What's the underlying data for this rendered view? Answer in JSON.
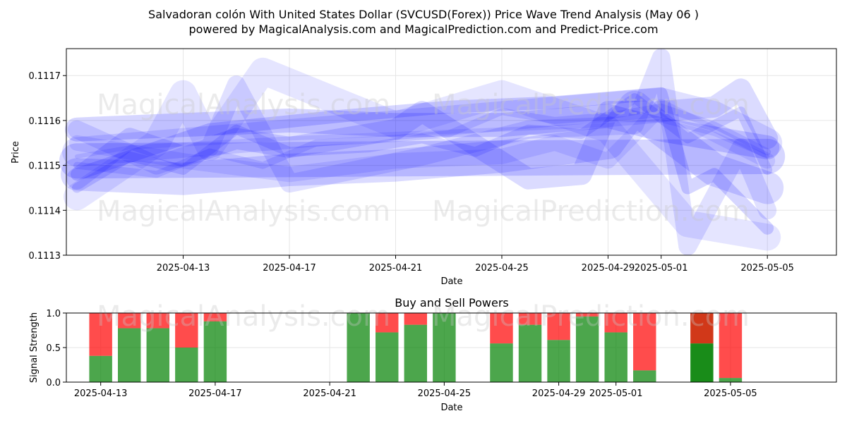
{
  "title_line1": "Salvadoran colón With United States Dollar (SVCUSD(Forex)) Price Wave Trend Analysis (May 06 )",
  "title_line2": "powered by MagicalAnalysis.com and MagicalPrediction.com and Predict-Price.com",
  "watermarks": [
    "MagicalAnalysis.com",
    "MagicalPrediction.com"
  ],
  "colors": {
    "wave": "#0000ff",
    "buy": "#008000",
    "sell": "#ff0000",
    "grid": "#e6e6e6"
  },
  "chart_data": [
    {
      "type": "line",
      "title": "",
      "xlabel": "Date",
      "ylabel": "Price",
      "x_range_days": [
        -2.4,
        26.6
      ],
      "x_ticks": [
        {
          "day": 2,
          "label": "2025-04-13"
        },
        {
          "day": 6,
          "label": "2025-04-17"
        },
        {
          "day": 10,
          "label": "2025-04-21"
        },
        {
          "day": 14,
          "label": "2025-04-25"
        },
        {
          "day": 18,
          "label": "2025-04-29"
        },
        {
          "day": 20,
          "label": "2025-05-01"
        },
        {
          "day": 24,
          "label": "2025-05-05"
        }
      ],
      "ylim": [
        0.1113,
        0.11176
      ],
      "y_ticks": [
        {
          "value": 0.1113,
          "label": "0.1113"
        },
        {
          "value": 0.1114,
          "label": "0.1114"
        },
        {
          "value": 0.1115,
          "label": "0.1115"
        },
        {
          "value": 0.1116,
          "label": "0.1116"
        },
        {
          "value": 0.1117,
          "label": "0.1117"
        }
      ],
      "grid": true,
      "series": [
        {
          "name": "wave-1",
          "x": [
            -2,
            0,
            3,
            6,
            10,
            14,
            18,
            20,
            22,
            24
          ],
          "y": [
            0.11152,
            0.11154,
            0.11155,
            0.11156,
            0.11157,
            0.11158,
            0.11159,
            0.1116,
            0.11157,
            0.11152
          ]
        },
        {
          "name": "wave-2",
          "x": [
            -2,
            1,
            3,
            5,
            7,
            10,
            12,
            14,
            16,
            18,
            20,
            22,
            24
          ],
          "y": [
            0.1115,
            0.11148,
            0.11153,
            0.1115,
            0.11155,
            0.11156,
            0.11157,
            0.11162,
            0.1116,
            0.11161,
            0.11163,
            0.11159,
            0.11153
          ]
        },
        {
          "name": "wave-3",
          "x": [
            -2,
            0,
            2,
            4,
            6,
            9,
            11,
            13,
            15,
            17,
            19,
            21,
            23,
            24
          ],
          "y": [
            0.11145,
            0.11152,
            0.11149,
            0.11158,
            0.11153,
            0.11154,
            0.11156,
            0.11153,
            0.11158,
            0.11157,
            0.11165,
            0.11156,
            0.11162,
            0.11149
          ]
        },
        {
          "name": "wave-4",
          "x": [
            -2,
            3,
            8,
            12,
            16,
            20,
            21,
            22,
            24
          ],
          "y": [
            0.11148,
            0.11158,
            0.11161,
            0.11163,
            0.11164,
            0.11166,
            0.11145,
            0.11148,
            0.11136
          ]
        },
        {
          "name": "wave-5",
          "x": [
            -2,
            2,
            6,
            10,
            14,
            16,
            18,
            20,
            22,
            24
          ],
          "y": [
            0.11155,
            0.11151,
            0.11148,
            0.11151,
            0.11152,
            0.11155,
            0.11151,
            0.11163,
            0.11157,
            0.11151
          ]
        },
        {
          "name": "wave-6",
          "x": [
            -2,
            1,
            3,
            4,
            6,
            11,
            15,
            19,
            20,
            21,
            23,
            24
          ],
          "y": [
            0.11158,
            0.1115,
            0.11154,
            0.11168,
            0.11146,
            0.11152,
            0.11158,
            0.11159,
            0.11174,
            0.11132,
            0.11154,
            0.1114
          ]
        },
        {
          "name": "wave-7",
          "x": [
            -2,
            0,
            2,
            4,
            6,
            10,
            11,
            15,
            17,
            18,
            20,
            22,
            23,
            24
          ],
          "y": [
            0.11147,
            0.11156,
            0.11152,
            0.11156,
            0.11154,
            0.11158,
            0.11162,
            0.11147,
            0.11148,
            0.11162,
            0.11162,
            0.11163,
            0.11167,
            0.11156
          ]
        },
        {
          "name": "wave-8",
          "x": [
            -2,
            2,
            6,
            10,
            14,
            18,
            20,
            24
          ],
          "y": [
            0.11158,
            0.11159,
            0.1116,
            0.11159,
            0.11159,
            0.11161,
            0.11158,
            0.11154
          ]
        },
        {
          "name": "wave-9",
          "x": [
            -2,
            1,
            2,
            3,
            5,
            10,
            14,
            18,
            21,
            24
          ],
          "y": [
            0.11143,
            0.11155,
            0.11166,
            0.11154,
            0.11171,
            0.11159,
            0.11166,
            0.11158,
            0.11137,
            0.11134
          ]
        },
        {
          "name": "wave-10",
          "x": [
            -2,
            4,
            8,
            12,
            16,
            20,
            22,
            24
          ],
          "y": [
            0.11153,
            0.11156,
            0.11158,
            0.1116,
            0.11162,
            0.11164,
            0.11161,
            0.11155
          ]
        },
        {
          "name": "wave-11",
          "x": [
            -2,
            2,
            6,
            10,
            14,
            18,
            19,
            20,
            22,
            24
          ],
          "y": [
            0.11148,
            0.11147,
            0.11149,
            0.1115,
            0.11152,
            0.11155,
            0.11163,
            0.11158,
            0.11149,
            0.11145
          ]
        },
        {
          "name": "wave-12",
          "x": [
            -2,
            24
          ],
          "y": [
            0.11151,
            0.11152
          ]
        }
      ]
    },
    {
      "type": "bar",
      "title": "Buy and Sell Powers",
      "xlabel": "Date",
      "ylabel": "Signal Strength",
      "ylim": [
        0,
        1
      ],
      "y_ticks": [
        {
          "value": 0,
          "label": "0.0"
        },
        {
          "value": 0.5,
          "label": "0.5"
        },
        {
          "value": 1,
          "label": "1.0"
        }
      ],
      "x_range_days": [
        -1.2,
        25.7
      ],
      "x_ticks": [
        {
          "day": 0,
          "label": "2025-04-13"
        },
        {
          "day": 4,
          "label": "2025-04-17"
        },
        {
          "day": 8,
          "label": "2025-04-21"
        },
        {
          "day": 12,
          "label": "2025-04-25"
        },
        {
          "day": 16,
          "label": "2025-04-29"
        },
        {
          "day": 18,
          "label": "2025-05-01"
        },
        {
          "day": 22,
          "label": "2025-05-05"
        }
      ],
      "bars": [
        {
          "day": 0,
          "buy": 0.38,
          "sell": 0.62
        },
        {
          "day": 1,
          "buy": 0.78,
          "sell": 0.22
        },
        {
          "day": 2,
          "buy": 0.78,
          "sell": 0.22
        },
        {
          "day": 3,
          "buy": 0.5,
          "sell": 0.5
        },
        {
          "day": 4,
          "buy": 0.88,
          "sell": 0.12
        },
        {
          "day": 9,
          "buy": 1.0,
          "sell": 0.0
        },
        {
          "day": 10,
          "buy": 0.72,
          "sell": 0.28
        },
        {
          "day": 11,
          "buy": 0.83,
          "sell": 0.17
        },
        {
          "day": 12,
          "buy": 1.0,
          "sell": 0.0
        },
        {
          "day": 14,
          "buy": 0.56,
          "sell": 0.44
        },
        {
          "day": 15,
          "buy": 0.83,
          "sell": 0.17
        },
        {
          "day": 16,
          "buy": 0.61,
          "sell": 0.39
        },
        {
          "day": 17,
          "buy": 0.95,
          "sell": 0.05
        },
        {
          "day": 18,
          "buy": 0.72,
          "sell": 0.28
        },
        {
          "day": 19,
          "buy": 0.17,
          "sell": 0.83
        },
        {
          "day": 21,
          "buy": 0.56,
          "sell": 0.44,
          "dark": true
        },
        {
          "day": 22,
          "buy": 0.06,
          "sell": 0.94
        }
      ]
    }
  ]
}
